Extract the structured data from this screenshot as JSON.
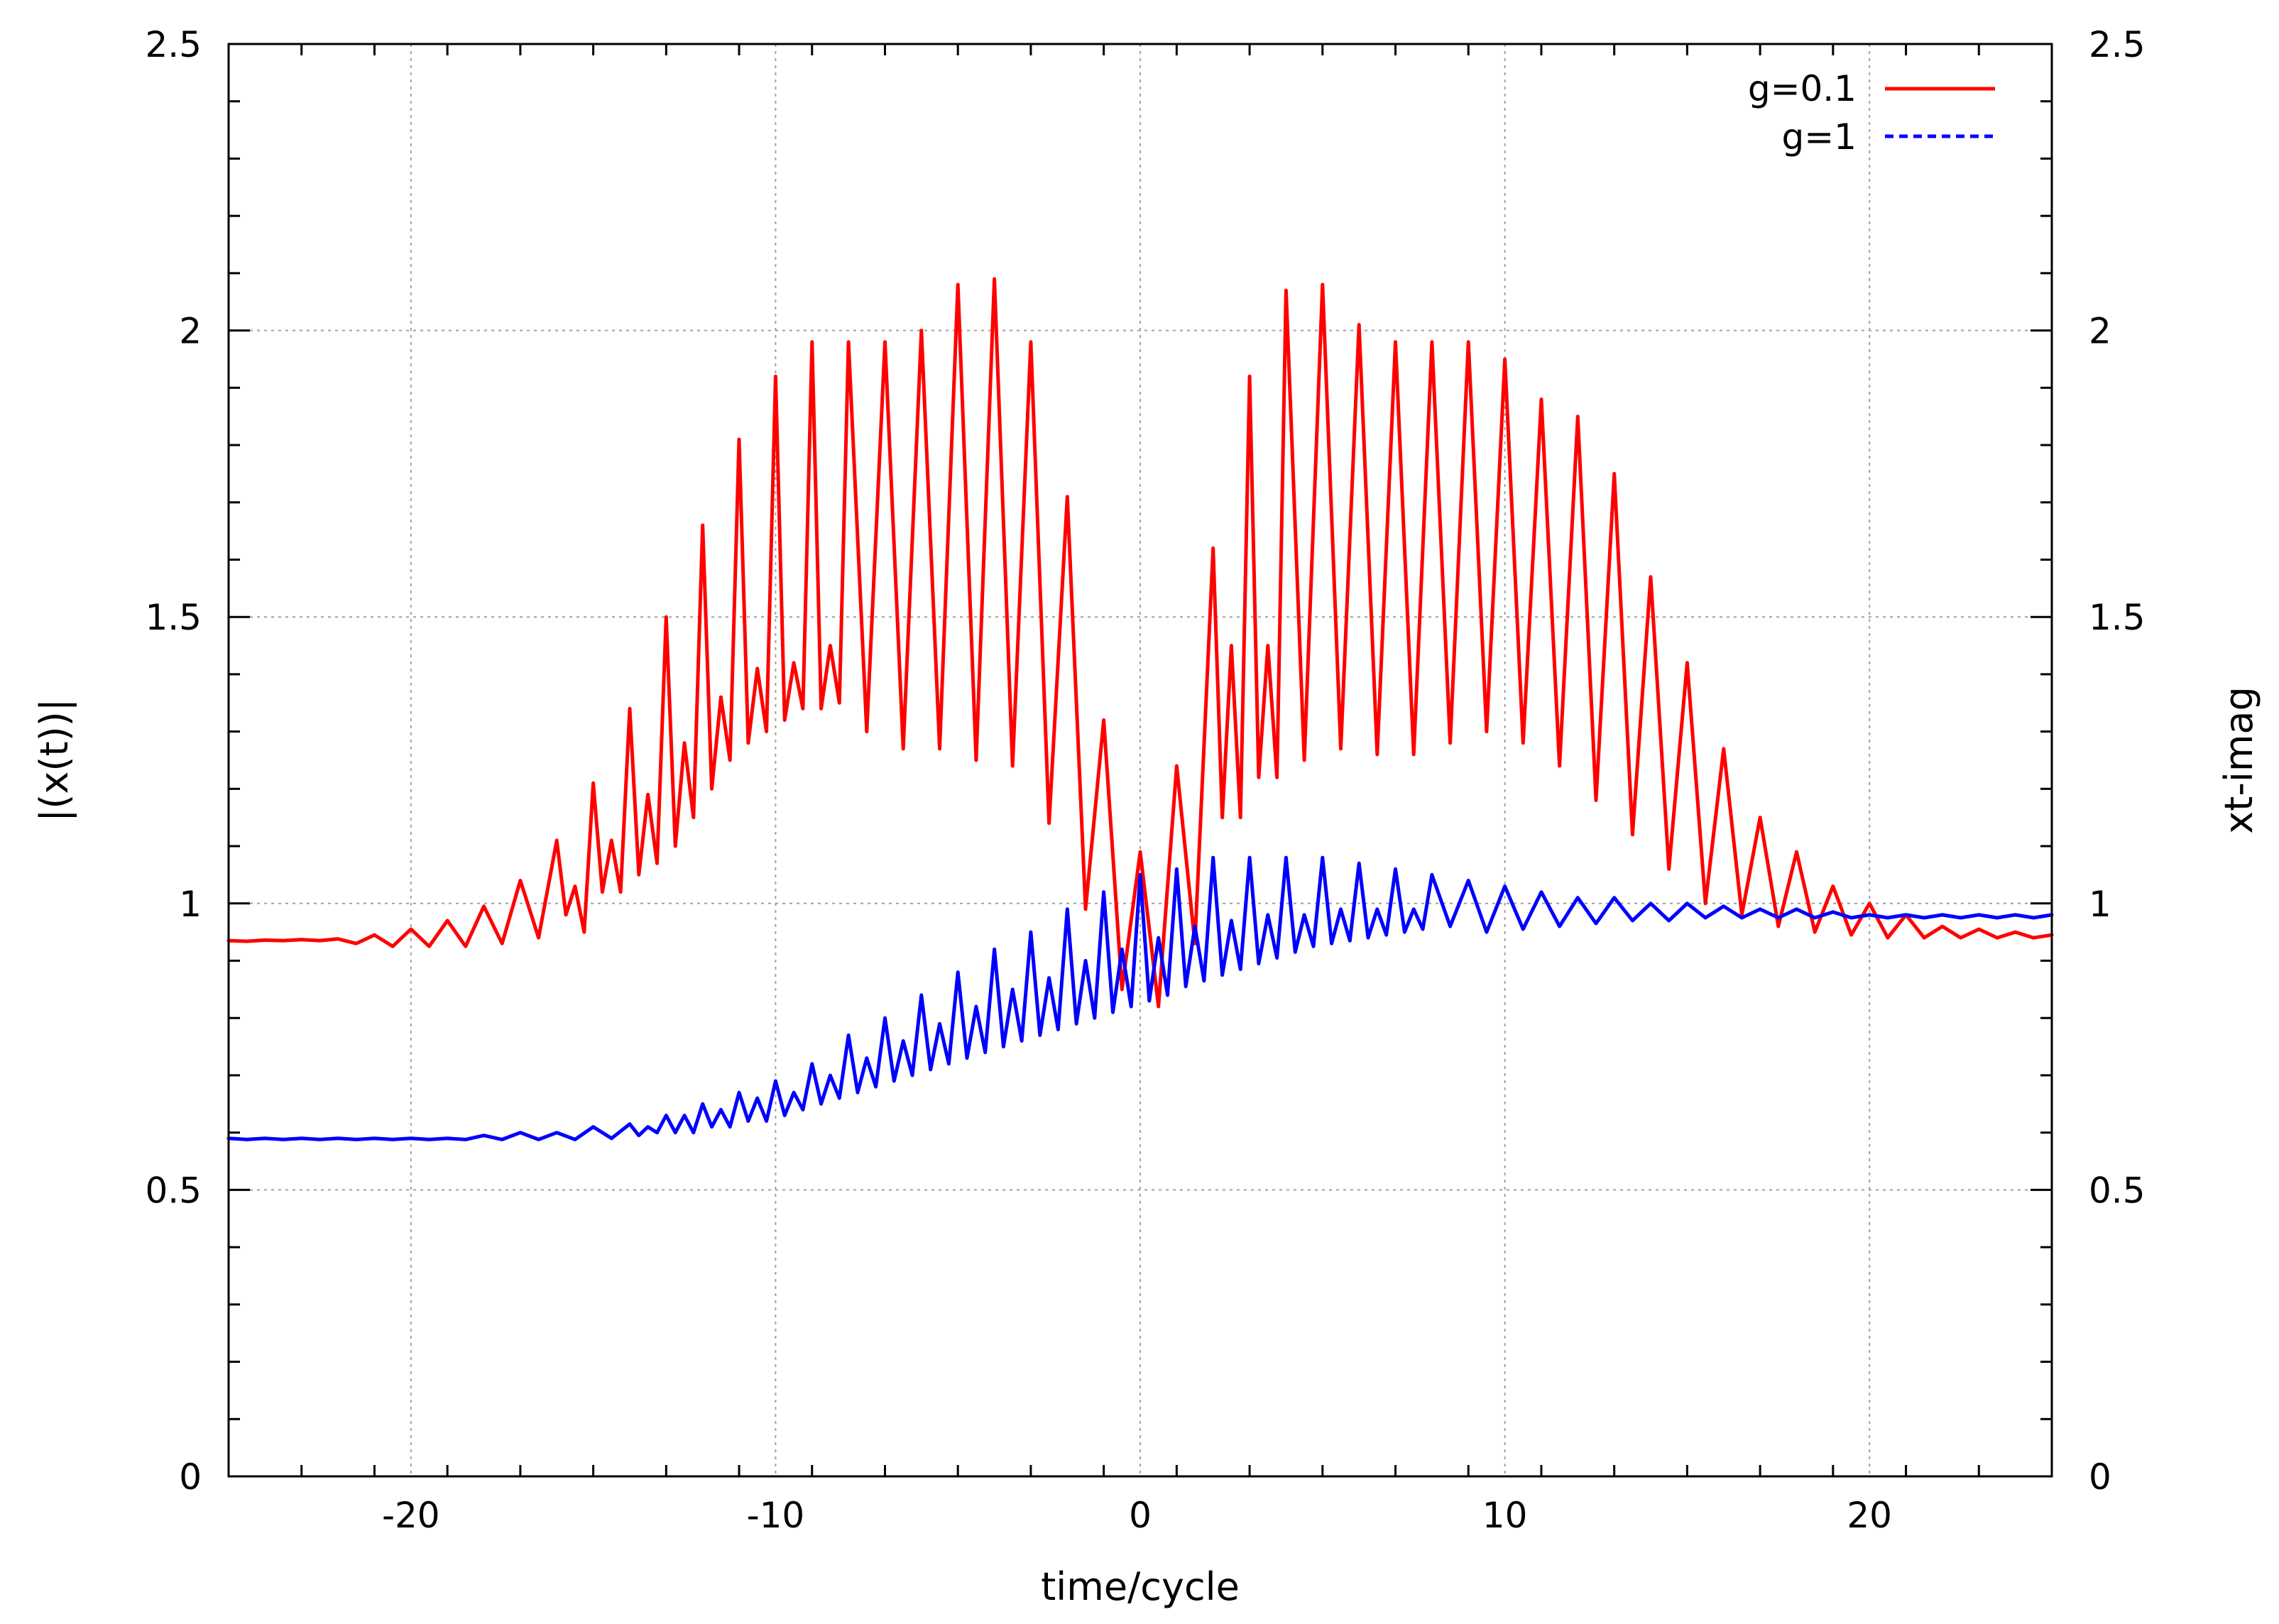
{
  "chart_data": {
    "type": "line",
    "title": "",
    "xlabel": "time/cycle",
    "ylabel": "|(x(t))|",
    "y2label": "xt-imag",
    "xlim": [
      -25,
      25
    ],
    "ylim": [
      0,
      2.5
    ],
    "y2lim": [
      0,
      2.5
    ],
    "grid": true,
    "legend_position": "top-right",
    "x_ticks": [
      -20,
      -10,
      0,
      10,
      20
    ],
    "x_tick_labels": [
      "-20",
      "-10",
      "0",
      "10",
      "20"
    ],
    "y_ticks": [
      0,
      0.5,
      1,
      1.5,
      2,
      2.5
    ],
    "y_tick_labels": [
      "0",
      "0.5",
      "1",
      "1.5",
      "2",
      "2.5"
    ],
    "y2_tick_labels": [
      "0",
      "0.5",
      "1",
      "1.5",
      "2",
      "2.5"
    ],
    "series": [
      {
        "name": "g=0.1",
        "color": "#ff0000",
        "style": "solid",
        "peak_times": [
          -25,
          -24,
          -23,
          -22,
          -21,
          -20,
          -19,
          -18,
          -17,
          -16,
          -15.5,
          -15,
          -14.5,
          -14,
          -13.5,
          -13,
          -12.5,
          -12,
          -11.5,
          -11,
          -10.5,
          -10,
          -9.5,
          -9,
          -8.5,
          -8,
          -7,
          -6,
          -5,
          -4,
          -3,
          -2,
          -1,
          0,
          1,
          2,
          2.5,
          3,
          3.5,
          4,
          5,
          6,
          7,
          8,
          9,
          10,
          11,
          12,
          13,
          14,
          15,
          16,
          17,
          18,
          19,
          20,
          21,
          22,
          23,
          24,
          25
        ],
        "peak_values": [
          0.935,
          0.936,
          0.937,
          0.938,
          0.945,
          0.955,
          0.97,
          0.995,
          1.04,
          1.11,
          1.03,
          1.21,
          1.11,
          1.34,
          1.19,
          1.5,
          1.28,
          1.66,
          1.36,
          1.81,
          1.41,
          1.92,
          1.42,
          1.98,
          1.45,
          1.98,
          1.98,
          2.0,
          2.08,
          2.09,
          1.98,
          1.71,
          1.32,
          1.09,
          1.24,
          1.62,
          1.45,
          1.92,
          1.45,
          2.07,
          2.08,
          2.01,
          1.98,
          1.98,
          1.98,
          1.95,
          1.88,
          1.85,
          1.75,
          1.57,
          1.42,
          1.27,
          1.15,
          1.09,
          1.03,
          1.0,
          0.98,
          0.96,
          0.955,
          0.95,
          0.945
        ],
        "trough_times": [
          -24.5,
          -23.5,
          -22.5,
          -21.5,
          -20.5,
          -19.5,
          -18.5,
          -17.5,
          -16.5,
          -15.75,
          -15.25,
          -14.75,
          -14.25,
          -13.75,
          -13.25,
          -12.75,
          -12.25,
          -11.75,
          -11.25,
          -10.75,
          -10.25,
          -9.75,
          -9.25,
          -8.75,
          -8.25,
          -7.5,
          -6.5,
          -5.5,
          -4.5,
          -3.5,
          -2.5,
          -1.5,
          -0.5,
          0.5,
          1.5,
          2.25,
          2.75,
          3.25,
          3.75,
          4.5,
          5.5,
          6.5,
          7.5,
          8.5,
          9.5,
          10.5,
          11.5,
          12.5,
          13.5,
          14.5,
          15.5,
          16.5,
          17.5,
          18.5,
          19.5,
          20.5,
          21.5,
          22.5,
          23.5,
          24.5
        ],
        "trough_values": [
          0.934,
          0.935,
          0.935,
          0.93,
          0.925,
          0.925,
          0.925,
          0.93,
          0.94,
          0.98,
          0.95,
          1.02,
          1.02,
          1.05,
          1.07,
          1.1,
          1.15,
          1.2,
          1.25,
          1.28,
          1.3,
          1.32,
          1.34,
          1.34,
          1.35,
          1.3,
          1.27,
          1.27,
          1.25,
          1.24,
          1.14,
          0.99,
          0.85,
          0.82,
          0.93,
          1.15,
          1.15,
          1.22,
          1.22,
          1.25,
          1.27,
          1.26,
          1.26,
          1.28,
          1.3,
          1.28,
          1.24,
          1.18,
          1.12,
          1.06,
          1.0,
          0.98,
          0.96,
          0.95,
          0.945,
          0.94,
          0.94,
          0.94,
          0.94,
          0.94
        ]
      },
      {
        "name": "g=1",
        "color": "#0000ff",
        "style": "dashed",
        "peak_times": [
          -25,
          -24,
          -23,
          -22,
          -21,
          -20,
          -19,
          -18,
          -17,
          -16,
          -15,
          -14,
          -13.5,
          -13,
          -12.5,
          -12,
          -11.5,
          -11,
          -10.5,
          -10,
          -9.5,
          -9,
          -8.5,
          -8,
          -7.5,
          -7,
          -6.5,
          -6,
          -5.5,
          -5,
          -4.5,
          -4,
          -3.5,
          -3,
          -2.5,
          -2,
          -1.5,
          -1,
          -0.5,
          0,
          0.5,
          1,
          1.5,
          2,
          2.5,
          3,
          3.5,
          4,
          4.5,
          5,
          5.5,
          6,
          6.5,
          7,
          7.5,
          8,
          9,
          10,
          11,
          12,
          13,
          14,
          15,
          16,
          17,
          18,
          19,
          20,
          21,
          22,
          23,
          24,
          25
        ],
        "peak_values": [
          0.59,
          0.59,
          0.59,
          0.59,
          0.59,
          0.59,
          0.59,
          0.595,
          0.6,
          0.6,
          0.61,
          0.615,
          0.61,
          0.63,
          0.63,
          0.65,
          0.64,
          0.67,
          0.66,
          0.69,
          0.67,
          0.72,
          0.7,
          0.77,
          0.73,
          0.8,
          0.76,
          0.84,
          0.79,
          0.88,
          0.82,
          0.92,
          0.85,
          0.95,
          0.87,
          0.99,
          0.9,
          1.02,
          0.92,
          1.05,
          0.94,
          1.06,
          0.96,
          1.08,
          0.97,
          1.08,
          0.98,
          1.08,
          0.98,
          1.08,
          0.99,
          1.07,
          0.99,
          1.06,
          0.99,
          1.05,
          1.04,
          1.03,
          1.02,
          1.01,
          1.01,
          1.0,
          1.0,
          0.995,
          0.99,
          0.99,
          0.985,
          0.98,
          0.98,
          0.98,
          0.98,
          0.98,
          0.98
        ],
        "trough_times": [
          -24.5,
          -23.5,
          -22.5,
          -21.5,
          -20.5,
          -19.5,
          -18.5,
          -17.5,
          -16.5,
          -15.5,
          -14.5,
          -13.75,
          -13.25,
          -12.75,
          -12.25,
          -11.75,
          -11.25,
          -10.75,
          -10.25,
          -9.75,
          -9.25,
          -8.75,
          -8.25,
          -7.75,
          -7.25,
          -6.75,
          -6.25,
          -5.75,
          -5.25,
          -4.75,
          -4.25,
          -3.75,
          -3.25,
          -2.75,
          -2.25,
          -1.75,
          -1.25,
          -0.75,
          -0.25,
          0.25,
          0.75,
          1.25,
          1.75,
          2.25,
          2.75,
          3.25,
          3.75,
          4.25,
          4.75,
          5.25,
          5.75,
          6.25,
          6.75,
          7.25,
          7.75,
          8.5,
          9.5,
          10.5,
          11.5,
          12.5,
          13.5,
          14.5,
          15.5,
          16.5,
          17.5,
          18.5,
          19.5,
          20.5,
          21.5,
          22.5,
          23.5,
          24.5
        ],
        "trough_values": [
          0.588,
          0.588,
          0.588,
          0.588,
          0.588,
          0.588,
          0.588,
          0.588,
          0.588,
          0.588,
          0.59,
          0.595,
          0.6,
          0.6,
          0.6,
          0.61,
          0.61,
          0.62,
          0.62,
          0.63,
          0.64,
          0.65,
          0.66,
          0.67,
          0.68,
          0.69,
          0.7,
          0.71,
          0.72,
          0.73,
          0.74,
          0.75,
          0.76,
          0.77,
          0.78,
          0.79,
          0.8,
          0.81,
          0.82,
          0.83,
          0.84,
          0.855,
          0.865,
          0.875,
          0.885,
          0.895,
          0.905,
          0.915,
          0.925,
          0.93,
          0.935,
          0.94,
          0.945,
          0.95,
          0.955,
          0.96,
          0.95,
          0.955,
          0.96,
          0.965,
          0.97,
          0.97,
          0.975,
          0.975,
          0.975,
          0.975,
          0.975,
          0.975,
          0.975,
          0.975,
          0.975,
          0.975
        ]
      }
    ]
  }
}
